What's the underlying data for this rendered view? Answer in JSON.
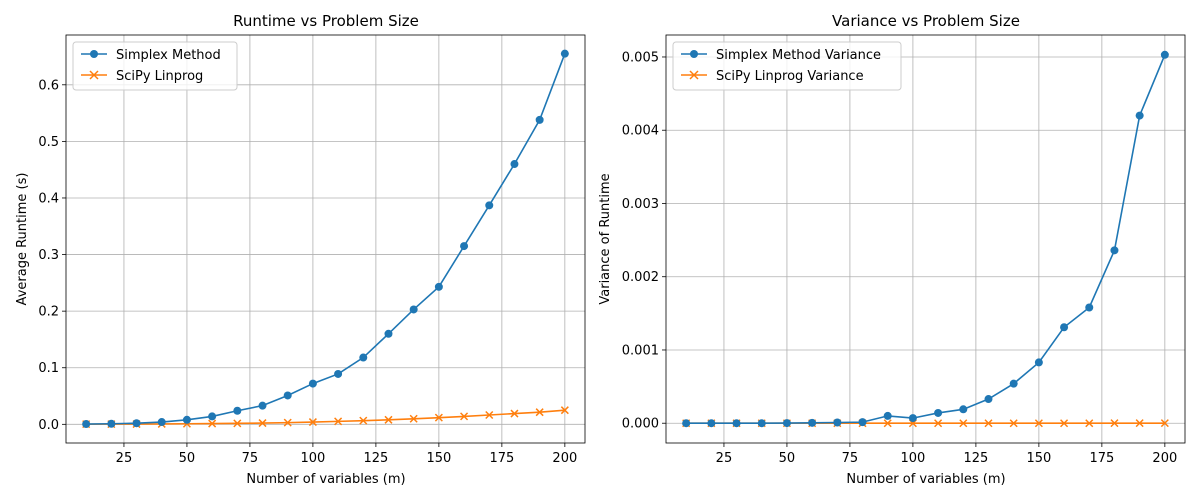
{
  "chart_data": [
    {
      "type": "line",
      "title": "Runtime vs Problem Size",
      "xlabel": "Number of variables (m)",
      "ylabel": "Average Runtime (s)",
      "xlim": [
        2,
        208
      ],
      "ylim": [
        -0.033,
        0.688
      ],
      "xticks": [
        25,
        50,
        75,
        100,
        125,
        150,
        175,
        200
      ],
      "xtick_labels": [
        "25",
        "50",
        "75",
        "100",
        "125",
        "150",
        "175",
        "200"
      ],
      "yticks": [
        0.0,
        0.1,
        0.2,
        0.3,
        0.4,
        0.5,
        0.6
      ],
      "ytick_labels": [
        "0.0",
        "0.1",
        "0.2",
        "0.3",
        "0.4",
        "0.5",
        "0.6"
      ],
      "grid": true,
      "legend_position": "upper-left",
      "x": [
        10,
        20,
        30,
        40,
        50,
        60,
        70,
        80,
        90,
        100,
        110,
        120,
        130,
        140,
        150,
        160,
        170,
        180,
        190,
        200
      ],
      "series": [
        {
          "name": "Simplex Method",
          "color": "#1f77b4",
          "marker": "circle",
          "values": [
            0.0005,
            0.001,
            0.002,
            0.004,
            0.008,
            0.014,
            0.024,
            0.033,
            0.051,
            0.072,
            0.089,
            0.118,
            0.16,
            0.203,
            0.243,
            0.315,
            0.387,
            0.46,
            0.538,
            0.655
          ]
        },
        {
          "name": "SciPy Linprog",
          "color": "#ff7f0e",
          "marker": "x",
          "values": [
            0.0003,
            0.0004,
            0.0005,
            0.0007,
            0.001,
            0.0013,
            0.0017,
            0.0022,
            0.003,
            0.004,
            0.0052,
            0.0065,
            0.008,
            0.0098,
            0.0118,
            0.014,
            0.0165,
            0.019,
            0.0215,
            0.025
          ]
        }
      ]
    },
    {
      "type": "line",
      "title": "Variance vs Problem Size",
      "xlabel": "Number of variables (m)",
      "ylabel": "Variance of Runtime",
      "xlim": [
        2,
        208
      ],
      "ylim": [
        -0.00027,
        0.0053
      ],
      "xticks": [
        25,
        50,
        75,
        100,
        125,
        150,
        175,
        200
      ],
      "xtick_labels": [
        "25",
        "50",
        "75",
        "100",
        "125",
        "150",
        "175",
        "200"
      ],
      "yticks": [
        0.0,
        0.001,
        0.002,
        0.003,
        0.004,
        0.005
      ],
      "ytick_labels": [
        "0.000",
        "0.001",
        "0.002",
        "0.003",
        "0.004",
        "0.005"
      ],
      "grid": true,
      "legend_position": "upper-left",
      "x": [
        10,
        20,
        30,
        40,
        50,
        60,
        70,
        80,
        90,
        100,
        110,
        120,
        130,
        140,
        150,
        160,
        170,
        180,
        190,
        200
      ],
      "series": [
        {
          "name": "Simplex Method Variance",
          "color": "#1f77b4",
          "marker": "circle",
          "values": [
            0.0,
            0.0,
            0.0,
            0.0,
            2e-06,
            5e-06,
            1e-05,
            1.5e-05,
            0.0001,
            7e-05,
            0.00014,
            0.00019,
            0.00033,
            0.00054,
            0.00083,
            0.00131,
            0.00158,
            0.00236,
            0.0042,
            0.00503
          ]
        },
        {
          "name": "SciPy Linprog Variance",
          "color": "#ff7f0e",
          "marker": "x",
          "values": [
            0.0,
            0.0,
            0.0,
            0.0,
            0.0,
            0.0,
            0.0,
            0.0,
            0.0,
            0.0,
            0.0,
            0.0,
            0.0,
            0.0,
            0.0,
            0.0,
            0.0,
            1e-06,
            1e-06,
            1e-06
          ]
        }
      ]
    }
  ]
}
